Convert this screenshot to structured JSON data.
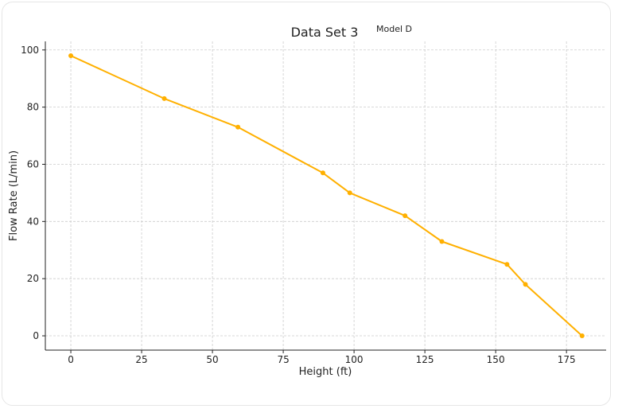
{
  "chart_data": {
    "type": "line",
    "title": "Data Set 3",
    "subtitle": "Model D",
    "xlabel": "Height (ft)",
    "ylabel": "Flow Rate (L/min)",
    "xlim": [
      -9,
      189
    ],
    "ylim": [
      -5,
      103
    ],
    "xticks": [
      0,
      25,
      50,
      75,
      100,
      125,
      150,
      175
    ],
    "yticks": [
      0,
      20,
      40,
      60,
      80,
      100
    ],
    "grid": true,
    "series": [
      {
        "color": "#FFB000",
        "x": [
          0,
          33,
          59,
          89,
          98.5,
          118,
          131,
          154,
          160.5,
          180.5
        ],
        "y": [
          98,
          83,
          73,
          57,
          50,
          42,
          33,
          25,
          18,
          0
        ]
      }
    ]
  }
}
